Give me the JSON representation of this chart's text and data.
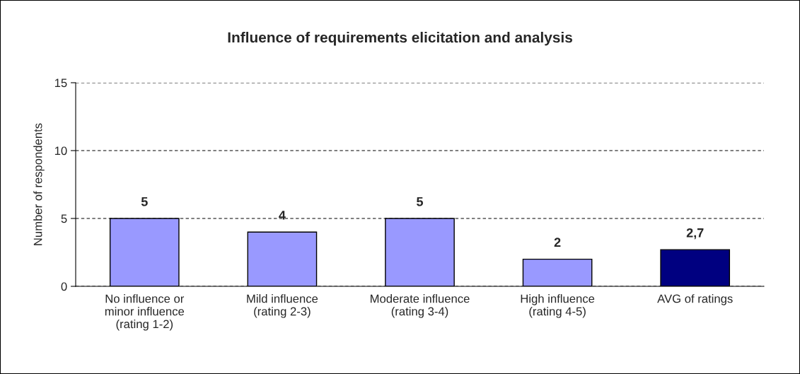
{
  "chart_data": {
    "type": "bar",
    "title": "Influence of requirements elicitation and analysis",
    "ylabel": "Number of respondents",
    "categories": [
      "No influence or\nminor influence\n(rating 1-2)",
      "Mild influence\n(rating 2-3)",
      "Moderate influence\n(rating 3-4)",
      "High influence\n(rating 4-5)",
      "AVG of ratings"
    ],
    "values": [
      5,
      4,
      5,
      2,
      2.7
    ],
    "value_labels": [
      "5",
      "4",
      "5",
      "2",
      "2,7"
    ],
    "colors": [
      "#9999ff",
      "#9999ff",
      "#9999ff",
      "#9999ff",
      "#000080"
    ],
    "ylim": [
      0,
      15
    ],
    "yticks": [
      0,
      5,
      10,
      15
    ],
    "grid": "y"
  }
}
